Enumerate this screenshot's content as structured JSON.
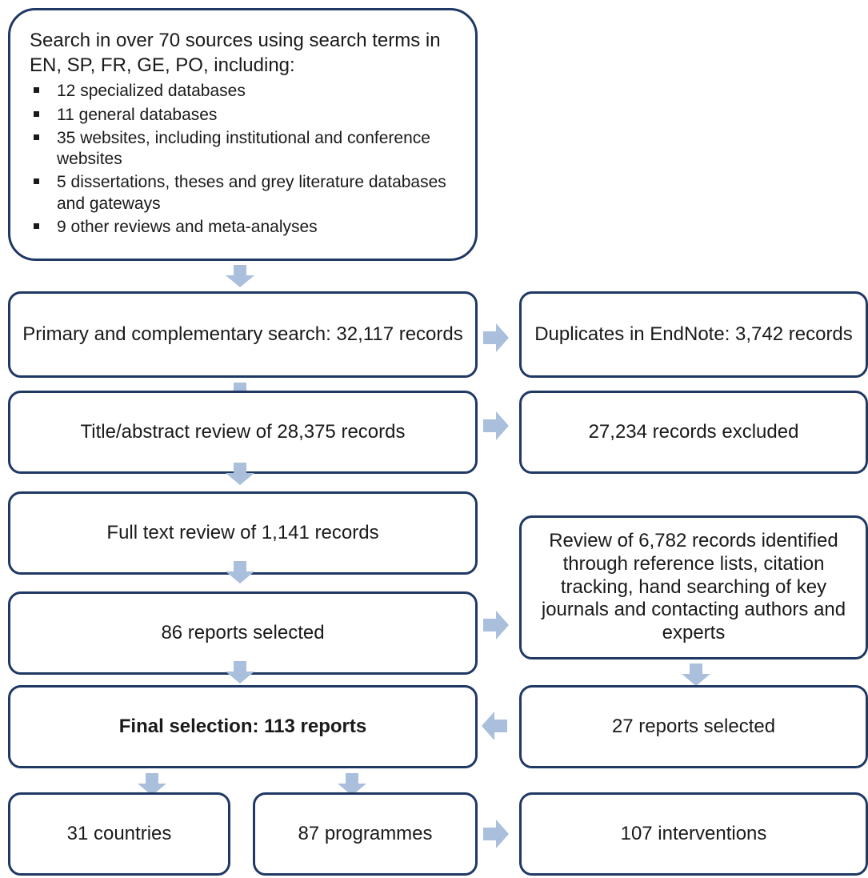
{
  "colors": {
    "box_border": "#1f3864",
    "arrow": "#a9bfdc"
  },
  "sources": {
    "intro": "Search in over 70 sources using search terms in EN, SP, FR, GE, PO, including:",
    "items": [
      "12 specialized databases",
      "11 general databases",
      "35 websites, including institutional and conference websites",
      "5 dissertations, theses and grey literature databases and gateways",
      "9 other reviews and meta-analyses"
    ]
  },
  "primary_search": "Primary and complementary search: 32,117 records",
  "duplicates": "Duplicates in EndNote: 3,742 records",
  "title_abstract_review": "Title/abstract review of 28,375 records",
  "excluded": "27,234 records excluded",
  "full_text_review": "Full text review of 1,141 records",
  "additional_review": "Review of 6,782 records identified through reference lists, citation tracking, hand searching of key journals and contacting authors and experts",
  "reports_selected_main": "86 reports selected",
  "reports_selected_additional": "27 reports selected",
  "final_selection": "Final selection: 113 reports",
  "countries": "31 countries",
  "programmes": "87 programmes",
  "interventions": "107 interventions",
  "icons": {
    "arrow_down": "down-arrow-icon",
    "arrow_right": "right-arrow-icon",
    "arrow_left": "left-arrow-icon"
  }
}
